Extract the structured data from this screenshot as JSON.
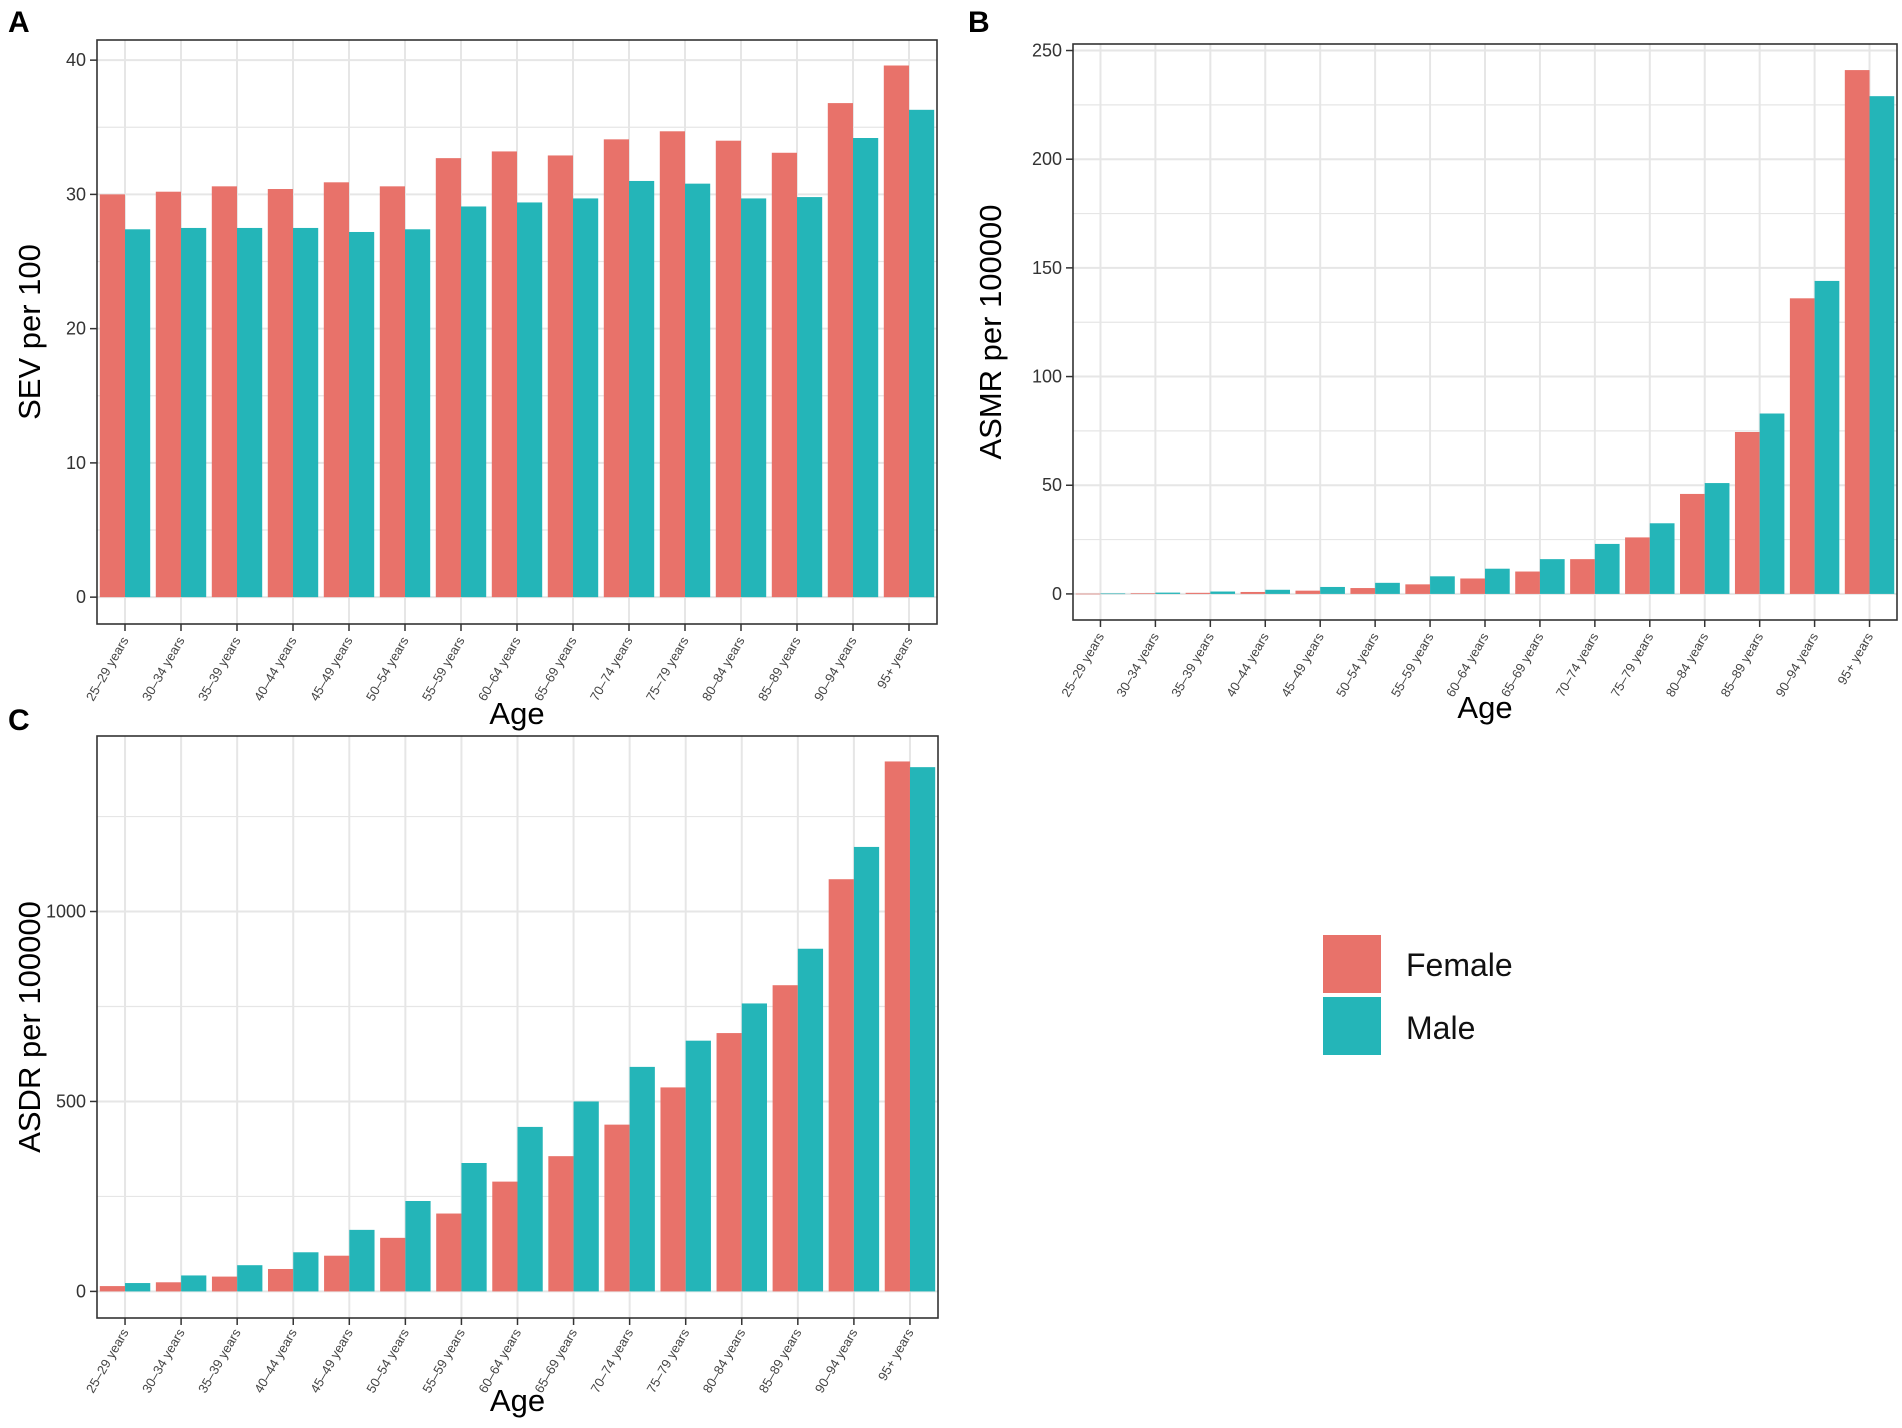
{
  "colors": {
    "female": "#E8726A",
    "male": "#24B5B8",
    "grid": "#E6E6E6",
    "frame": "#333333"
  },
  "legend": {
    "items": [
      {
        "label": "Female",
        "color": "#E8726A"
      },
      {
        "label": "Male",
        "color": "#24B5B8"
      }
    ]
  },
  "chart_data": [
    {
      "panel": "A",
      "type": "bar",
      "xlabel": "Age",
      "ylabel": "SEV per 100",
      "ylim": [
        -2,
        41.5
      ],
      "yticks": [
        0,
        10,
        20,
        30,
        40
      ],
      "categories": [
        "25–29 years",
        "30–34 years",
        "35–39 years",
        "40–44 years",
        "45–49 years",
        "50–54 years",
        "55–59 years",
        "60–64 years",
        "65–69 years",
        "70–74 years",
        "75–79 years",
        "80–84 years",
        "85–89 years",
        "90–94 years",
        "95+ years"
      ],
      "series": [
        {
          "name": "Female",
          "values": [
            30.0,
            30.2,
            30.6,
            30.4,
            30.9,
            30.6,
            32.7,
            33.2,
            32.9,
            34.1,
            34.7,
            34.0,
            33.1,
            36.8,
            39.6
          ]
        },
        {
          "name": "Male",
          "values": [
            27.4,
            27.5,
            27.5,
            27.5,
            27.2,
            27.4,
            29.1,
            29.4,
            29.7,
            31.0,
            30.8,
            29.7,
            29.8,
            34.2,
            36.3
          ]
        }
      ]
    },
    {
      "panel": "B",
      "type": "bar",
      "xlabel": "Age",
      "ylabel": "ASMR per 100000",
      "ylim": [
        -12,
        253
      ],
      "yticks": [
        0,
        50,
        100,
        150,
        200,
        250
      ],
      "categories": [
        "25–29 years",
        "30–34 years",
        "35–39 years",
        "40–44 years",
        "45–49 years",
        "50–54 years",
        "55–59 years",
        "60–64 years",
        "65–69 years",
        "70–74 years",
        "75–79 years",
        "80–84 years",
        "85–89 years",
        "90–94 years",
        "95+ years"
      ],
      "series": [
        {
          "name": "Female",
          "values": [
            0.1,
            0.3,
            0.5,
            0.9,
            1.5,
            2.7,
            4.4,
            7.1,
            10.3,
            16.0,
            26.0,
            46.0,
            74.5,
            136.0,
            241.0
          ]
        },
        {
          "name": "Male",
          "values": [
            0.2,
            0.6,
            1.1,
            1.9,
            3.2,
            5.1,
            8.1,
            11.6,
            16.0,
            23.0,
            32.5,
            51.0,
            83.0,
            144.0,
            229.0
          ]
        }
      ]
    },
    {
      "panel": "C",
      "type": "bar",
      "xlabel": "Age",
      "ylabel": "ASDR per 100000",
      "ylim": [
        -70,
        1462
      ],
      "yticks": [
        0,
        500,
        1000
      ],
      "categories": [
        "25–29 years",
        "30–34 years",
        "35–39 years",
        "40–44 years",
        "45–49 years",
        "50–54 years",
        "55–59 years",
        "60–64 years",
        "65–69 years",
        "70–74 years",
        "75–79 years",
        "80–84 years",
        "85–89 years",
        "90–94 years",
        "95+ years"
      ],
      "series": [
        {
          "name": "Female",
          "values": [
            14,
            24,
            39,
            59,
            94,
            141,
            205,
            289,
            356,
            439,
            537,
            680,
            806,
            1085,
            1395
          ]
        },
        {
          "name": "Male",
          "values": [
            22,
            42,
            69,
            103,
            162,
            238,
            338,
            433,
            500,
            591,
            660,
            758,
            902,
            1170,
            1380
          ]
        }
      ]
    }
  ]
}
